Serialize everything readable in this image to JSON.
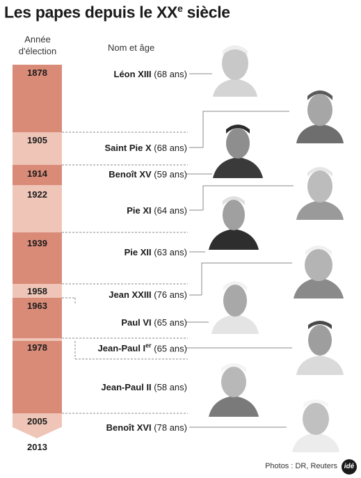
{
  "title": "Les papes depuis le XX",
  "title_sup": "e",
  "title_end": " siècle",
  "header": {
    "year_line1": "Année",
    "year_line2": "d'élection",
    "name": "Nom et âge"
  },
  "popes": [
    {
      "year": "1878",
      "name": "Léon XIII",
      "age": "(68 ans)"
    },
    {
      "year": "1905",
      "name": "Saint Pie X",
      "age": "(68 ans)"
    },
    {
      "year": "1914",
      "name": "Benoît XV",
      "age": "(59 ans)"
    },
    {
      "year": "1922",
      "name": "Pie XI",
      "age": "(64 ans)"
    },
    {
      "year": "1939",
      "name": "Pie XII",
      "age": "(63 ans)"
    },
    {
      "year": "1958",
      "name": "Jean XXIII",
      "age": "(76 ans)"
    },
    {
      "year": "1963",
      "name": "Paul VI",
      "age": "(65 ans)"
    },
    {
      "year": "1978",
      "name": "Jean-Paul I",
      "name_sup": "er",
      "age": "(65 ans)"
    },
    {
      "year": "",
      "name": "Jean-Paul II",
      "age": "(58 ans)"
    },
    {
      "year": "2005",
      "name": "Benoît XVI",
      "age": "(78 ans)"
    }
  ],
  "end_year": "2013",
  "credit": "Photos : DR, Reuters",
  "logo": "idé"
}
